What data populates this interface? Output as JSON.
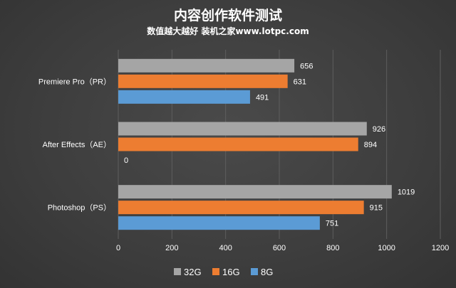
{
  "chart_data": {
    "type": "bar",
    "orientation": "horizontal",
    "title": "内容创作软件测试",
    "subtitle": "数值越大越好  装机之家www.lotpc.com",
    "categories": [
      "Premiere Pro（PR）",
      "After Effects（AE）",
      "Photoshop（PS）"
    ],
    "series": [
      {
        "name": "32G",
        "color": "#a5a5a5",
        "values": [
          656,
          926,
          1019
        ]
      },
      {
        "name": "16G",
        "color": "#ed7d31",
        "values": [
          631,
          894,
          915
        ]
      },
      {
        "name": "8G",
        "color": "#5b9bd5",
        "values": [
          491,
          0,
          751
        ]
      }
    ],
    "xlim": [
      0,
      1200
    ],
    "xticks": [
      0,
      200,
      400,
      600,
      800,
      1000,
      1200
    ],
    "grid": true,
    "legend": "bottom",
    "xlabel": "",
    "ylabel": ""
  }
}
